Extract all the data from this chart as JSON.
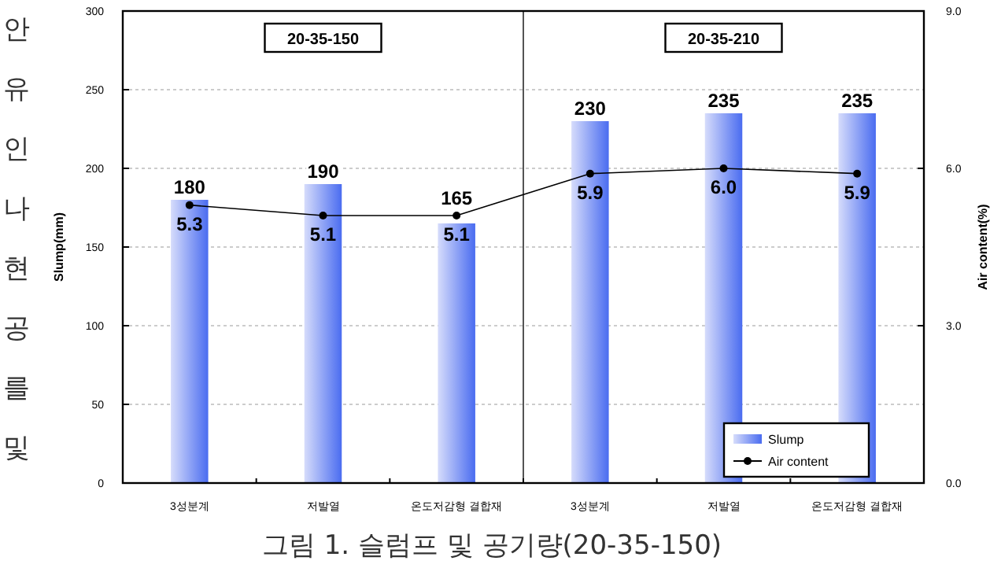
{
  "chart_data": {
    "type": "bar",
    "title": "그림 1. 슬럼프 및 공기량(20-35-150)",
    "ylabel": "Slump(mm)",
    "y2label": "Air content(%)",
    "categories": [
      "3성분계",
      "저발열",
      "온도저감형 결합재",
      "3성분계",
      "저발열",
      "온도저감형 결합재"
    ],
    "series": [
      {
        "name": "Slump",
        "color": "#4a6cf0",
        "values": [
          180,
          190,
          165,
          230,
          235,
          235
        ]
      },
      {
        "name": "Air content",
        "type": "line",
        "axis": "y2",
        "color": "#000000",
        "values": [
          5.3,
          5.1,
          5.1,
          5.9,
          6.0,
          5.9
        ],
        "value_labels": [
          "5.3",
          "5.1",
          "5.1",
          "5.9",
          "6.0",
          "5.9"
        ]
      }
    ],
    "ylim": [
      0,
      300
    ],
    "yticks": [
      0,
      50,
      100,
      150,
      200,
      250,
      300
    ],
    "y2lim": [
      0,
      9
    ],
    "y2ticks": [
      {
        "value": 0,
        "label": "0.0"
      },
      {
        "value": 3,
        "label": "3.0"
      },
      {
        "value": 6,
        "label": "6.0"
      },
      {
        "value": 9,
        "label": "9.0"
      }
    ],
    "grid": "y",
    "legend": "bottom right",
    "marker": "circle",
    "data_labels": true,
    "annotations": [
      "20-35-150",
      "20-35-210",
      "안유인나현공를및"
    ]
  }
}
